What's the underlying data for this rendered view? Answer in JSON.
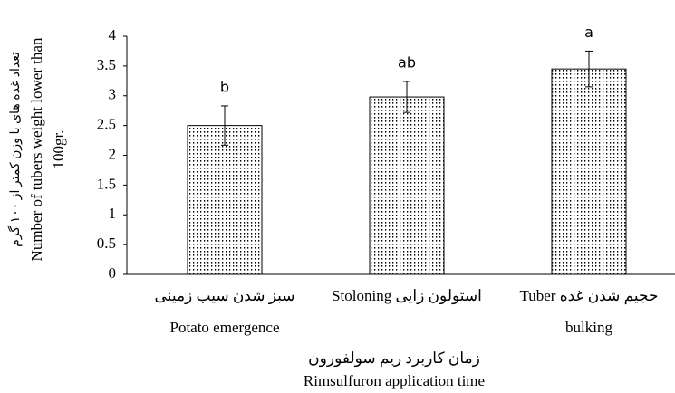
{
  "chart_data": {
    "type": "bar",
    "categories": [
      [
        "سبز شدن سیب زمینی",
        "Potato emergence"
      ],
      [
        "Stoloning استولون زایی"
      ],
      [
        "Tuber حجیم شدن غده",
        "bulking"
      ]
    ],
    "values": [
      2.5,
      2.98,
      3.45
    ],
    "errors": [
      0.33,
      0.26,
      0.3
    ],
    "letters": [
      "b",
      "ab",
      "a"
    ],
    "xlabel": [
      "زمان کاربرد ریم سولفورون",
      "Rimsulfuron application time"
    ],
    "ylabel": [
      "تعداد غده های با وزن کمتر از ۱۰۰ گرم",
      "Number of tubers weight lower than",
      "100gr."
    ],
    "ylim": [
      0,
      4
    ],
    "yticks": [
      0,
      0.5,
      1,
      1.5,
      2,
      2.5,
      3,
      3.5,
      4
    ],
    "color": "#000000",
    "grid": false
  }
}
